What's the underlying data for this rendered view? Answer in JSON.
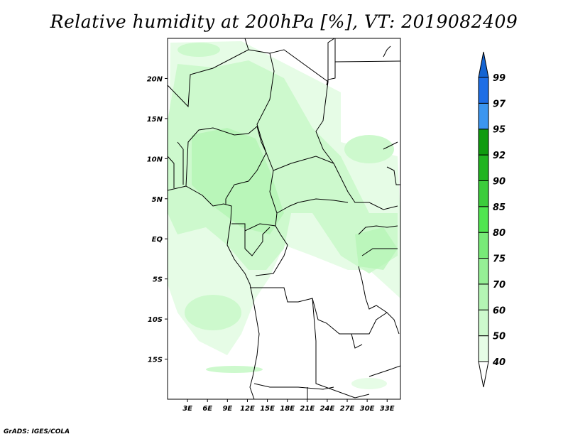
{
  "title": "Relative humidity at 200hPa [%], VT: 2019082409",
  "credit": "GrADS: IGES/COLA",
  "map": {
    "lat_labels": [
      "20N",
      "15N",
      "10N",
      "5N",
      "EQ",
      "5S",
      "10S",
      "15S"
    ],
    "lat_values": [
      20,
      15,
      10,
      5,
      0,
      -5,
      -10,
      -15
    ],
    "lon_labels": [
      "3E",
      "6E",
      "9E",
      "12E",
      "15E",
      "18E",
      "21E",
      "24E",
      "27E",
      "30E",
      "33E"
    ],
    "lon_values": [
      3,
      6,
      9,
      12,
      15,
      18,
      21,
      24,
      27,
      30,
      33
    ],
    "lon_range": [
      0,
      35
    ],
    "lat_range": [
      -20,
      25
    ]
  },
  "colorbar": {
    "labels": [
      "40",
      "50",
      "60",
      "70",
      "75",
      "80",
      "85",
      "90",
      "92",
      "95",
      "97",
      "99"
    ],
    "colors": [
      "#e6fce6",
      "#cdf9cd",
      "#b4f5b4",
      "#96f096",
      "#78ea78",
      "#50e650",
      "#3ccd3c",
      "#21b421",
      "#0f9b0f",
      "#3c96f0",
      "#1e6ee6",
      "#1464d2"
    ],
    "under_color": "#ffffff",
    "over_color": "#1464d2"
  }
}
